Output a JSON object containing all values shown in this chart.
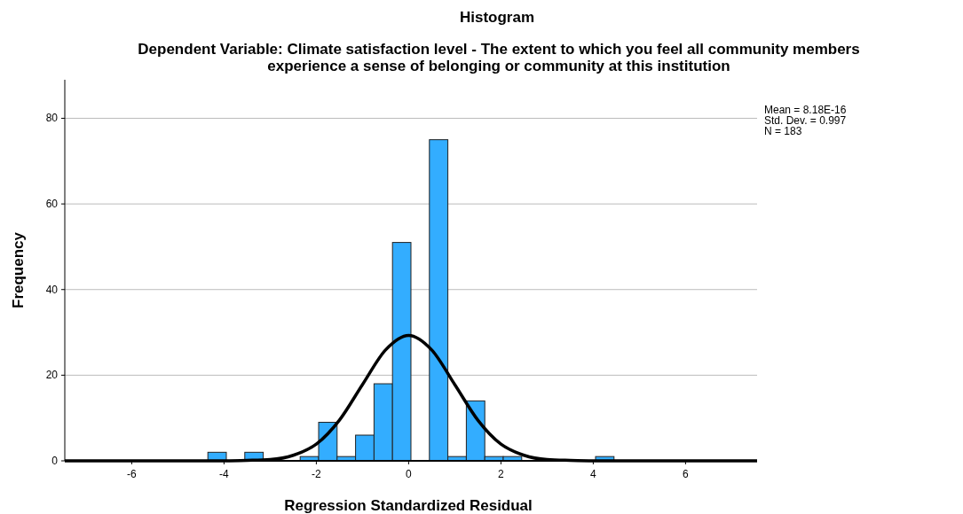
{
  "chart_data": {
    "type": "histogram",
    "title": "Histogram",
    "subtitle": "Dependent Variable: Climate satisfaction level - The extent to which you feel all community members\nexperience a sense of belonging or community at this institution",
    "xlabel": "Regression Standardized Residual",
    "ylabel": "Frequency",
    "bins": [
      -4.35,
      -3.95,
      -3.55,
      -3.15,
      -2.75,
      -2.35,
      -1.95,
      -1.55,
      -1.15,
      -0.75,
      -0.35,
      0.05,
      0.45,
      0.85,
      1.25,
      1.65,
      2.05,
      2.45,
      2.85,
      3.25,
      3.65,
      4.05,
      4.45
    ],
    "values": [
      2,
      0,
      2,
      0,
      0,
      1,
      9,
      1,
      6,
      18,
      51,
      0,
      75,
      1,
      14,
      1,
      1,
      0,
      0,
      0,
      0,
      1
    ],
    "color": "#33adff",
    "series": [
      {
        "type": "line",
        "color": "#000000",
        "x": [
          -7.45,
          -5,
          -4,
          -3.5,
          -3,
          -2.5,
          -2,
          -1.5,
          -1,
          -0.5,
          0,
          0.5,
          1,
          1.5,
          2,
          2.5,
          3,
          3.5,
          4,
          5,
          7.55
        ],
        "values": [
          0,
          0,
          0,
          0.1,
          0.3,
          1.3,
          3.9,
          9.5,
          17.8,
          25.9,
          29.3,
          25.9,
          17.8,
          9.5,
          3.9,
          1.3,
          0.3,
          0.1,
          0,
          0,
          0
        ]
      }
    ],
    "xlim": [
      -7.45,
      7.55
    ],
    "xticks": [
      -6,
      -4,
      -2,
      0,
      2,
      4,
      6
    ],
    "ylim": [
      0,
      89
    ],
    "yticks": [
      0,
      20,
      40,
      60,
      80
    ],
    "grid": "y",
    "annotations": [
      "Mean = 8.18E-16",
      "Std. Dev. = 0.997",
      "N = 183"
    ]
  }
}
